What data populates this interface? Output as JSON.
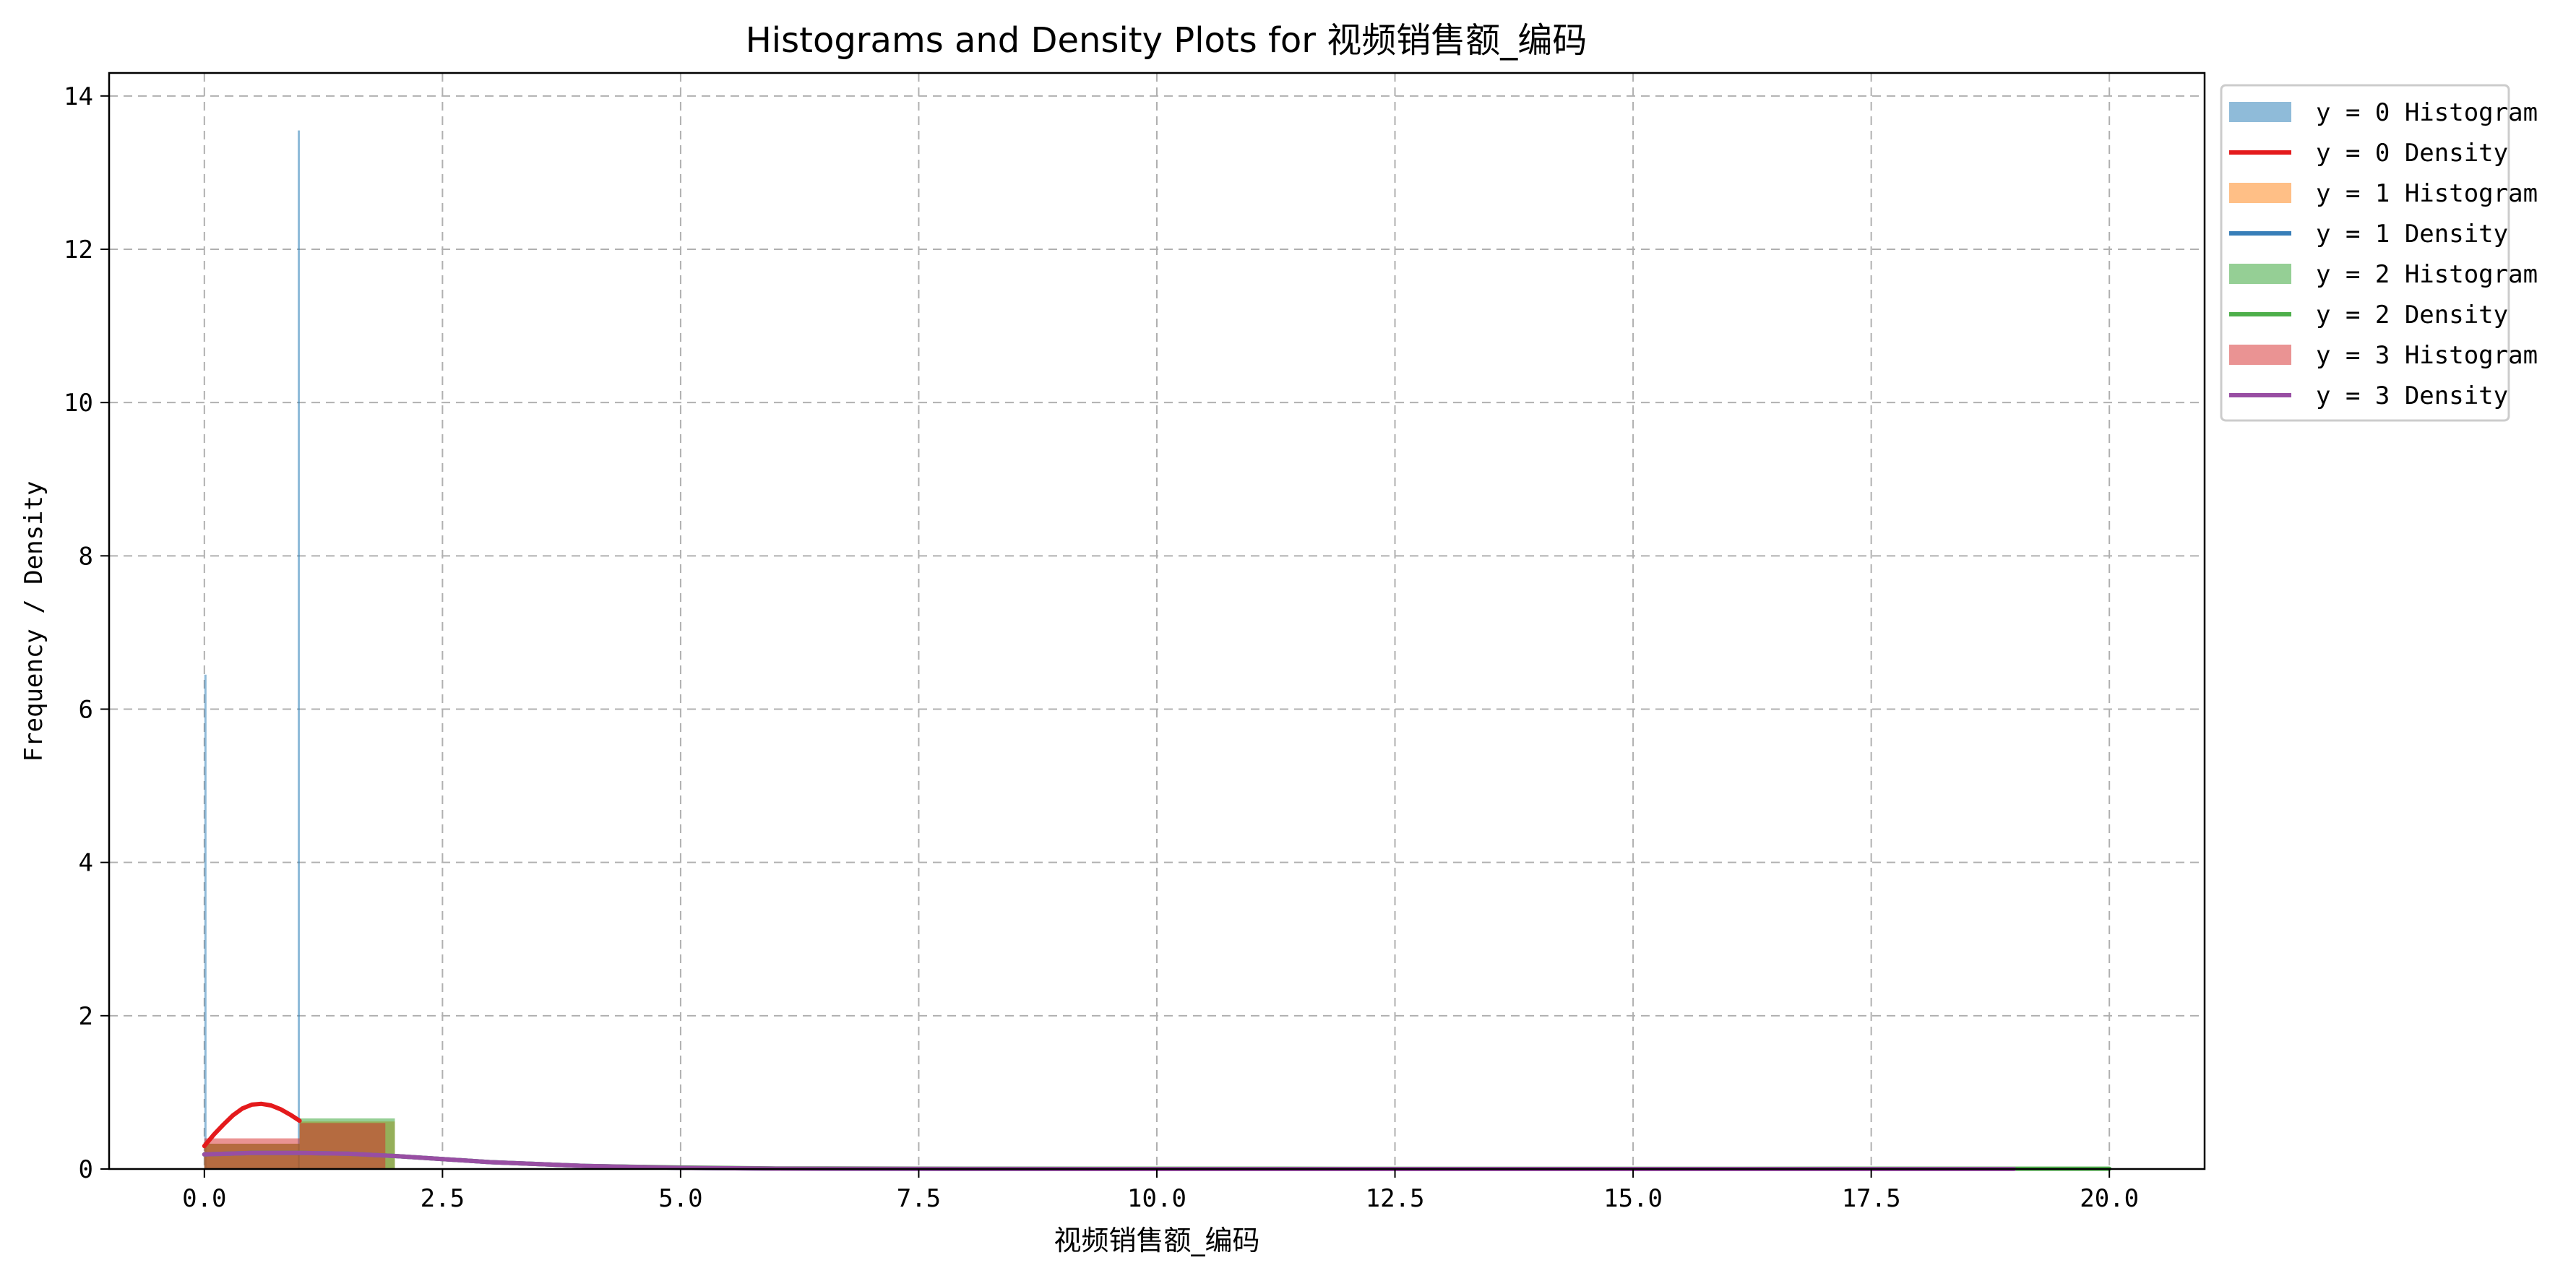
{
  "chart_data": {
    "type": "histogram+density",
    "title": "Histograms and Density Plots for 视频销售额_编码",
    "xlabel": "视频销售额_编码",
    "ylabel": "Frequency / Density",
    "xlim": [
      -1.0,
      21.0
    ],
    "ylim": [
      0,
      14.3
    ],
    "xticks": [
      "0.0",
      "2.5",
      "5.0",
      "7.5",
      "10.0",
      "12.5",
      "15.0",
      "17.5",
      "20.0"
    ],
    "xtick_values": [
      0,
      2.5,
      5,
      7.5,
      10,
      12.5,
      15,
      17.5,
      20
    ],
    "yticks": [
      "0",
      "2",
      "4",
      "6",
      "8",
      "10",
      "12",
      "14"
    ],
    "ytick_values": [
      0,
      2,
      4,
      6,
      8,
      10,
      12,
      14
    ],
    "grid": true,
    "legend_position": "outside upper-right",
    "series": [
      {
        "name": "y = 0",
        "histogram_label": "y = 0 Histogram",
        "density_label": "y = 0 Density",
        "hist_color": "#1f77b4",
        "density_color": "#e41a1c",
        "bins": [
          {
            "x0": 0.0,
            "x1": 0.02,
            "height": 6.45
          },
          {
            "x0": 0.98,
            "x1": 1.0,
            "height": 13.55
          }
        ],
        "density": {
          "x": [
            0,
            0.1,
            0.2,
            0.3,
            0.4,
            0.5,
            0.6,
            0.7,
            0.8,
            0.9,
            1.0
          ],
          "y": [
            0.3,
            0.45,
            0.58,
            0.7,
            0.79,
            0.84,
            0.85,
            0.83,
            0.78,
            0.71,
            0.63
          ]
        }
      },
      {
        "name": "y = 1",
        "histogram_label": "y = 1 Histogram",
        "density_label": "y = 1 Density",
        "hist_color": "#ff7f0e",
        "density_color": "#377eb8",
        "bins": [
          {
            "x0": 0.0,
            "x1": 1.0,
            "height": 0.33
          },
          {
            "x0": 1.0,
            "x1": 2.0,
            "height": 0.62
          }
        ],
        "density": {
          "x": [
            0,
            0.5,
            1.0,
            1.5,
            2.0,
            2.5,
            3.0,
            4.0,
            5.0,
            6.0,
            8.0,
            10.0,
            12.0
          ],
          "y": [
            0.19,
            0.21,
            0.21,
            0.2,
            0.17,
            0.13,
            0.09,
            0.04,
            0.015,
            0.005,
            0.001,
            0.0,
            0.0
          ]
        }
      },
      {
        "name": "y = 2",
        "histogram_label": "y = 2 Histogram",
        "density_label": "y = 2 Density",
        "hist_color": "#2ca02c",
        "density_color": "#4daf4a",
        "bins": [
          {
            "x0": 0.0,
            "x1": 1.0,
            "height": 0.33
          },
          {
            "x0": 1.0,
            "x1": 2.0,
            "height": 0.66
          },
          {
            "x0": 19.0,
            "x1": 20.0,
            "height": 0.03
          }
        ],
        "density": {
          "x": [
            0,
            0.5,
            1.0,
            1.5,
            2.0,
            2.5,
            3.0,
            4.0,
            5.0,
            6.0,
            8.0,
            12.0,
            16.0,
            19.0,
            20.0
          ],
          "y": [
            0.19,
            0.21,
            0.21,
            0.2,
            0.17,
            0.13,
            0.09,
            0.04,
            0.02,
            0.008,
            0.004,
            0.003,
            0.003,
            0.004,
            0.004
          ]
        }
      },
      {
        "name": "y = 3",
        "histogram_label": "y = 3 Histogram",
        "density_label": "y = 3 Density",
        "hist_color": "#d62728",
        "density_color": "#984ea3",
        "bins": [
          {
            "x0": 0.0,
            "x1": 1.0,
            "height": 0.4
          },
          {
            "x0": 1.0,
            "x1": 1.9,
            "height": 0.6
          }
        ],
        "density": {
          "x": [
            0,
            0.5,
            1.0,
            1.5,
            2.0,
            2.5,
            3.0,
            4.0,
            5.0,
            6.0,
            8.0,
            10.0,
            12.0,
            15.0,
            17.5,
            19.0
          ],
          "y": [
            0.19,
            0.21,
            0.21,
            0.2,
            0.17,
            0.13,
            0.09,
            0.04,
            0.015,
            0.005,
            0.001,
            0.0,
            0.0,
            0.0,
            0.0,
            0.0
          ]
        }
      }
    ]
  }
}
